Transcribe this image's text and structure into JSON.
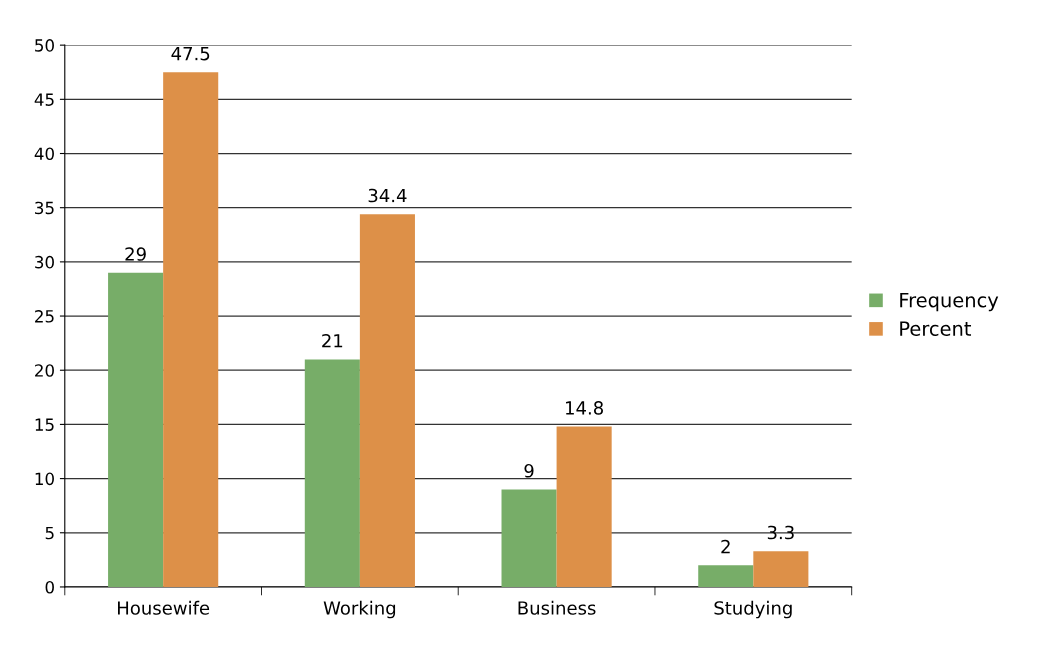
{
  "chart_data": {
    "type": "bar",
    "categories": [
      "Housewife",
      "Working",
      "Business",
      "Studying"
    ],
    "series": [
      {
        "name": "Frequency",
        "color": "#77ad68",
        "values": [
          29,
          21,
          9,
          2
        ]
      },
      {
        "name": "Percent",
        "color": "#dd9048",
        "values": [
          47.5,
          34.4,
          14.8,
          3.3
        ]
      }
    ],
    "ylim": [
      0,
      50
    ],
    "yticks": [
      0,
      5,
      10,
      15,
      20,
      25,
      30,
      35,
      40,
      45,
      50
    ],
    "grid": "y",
    "legend": "right",
    "data_labels": true
  }
}
